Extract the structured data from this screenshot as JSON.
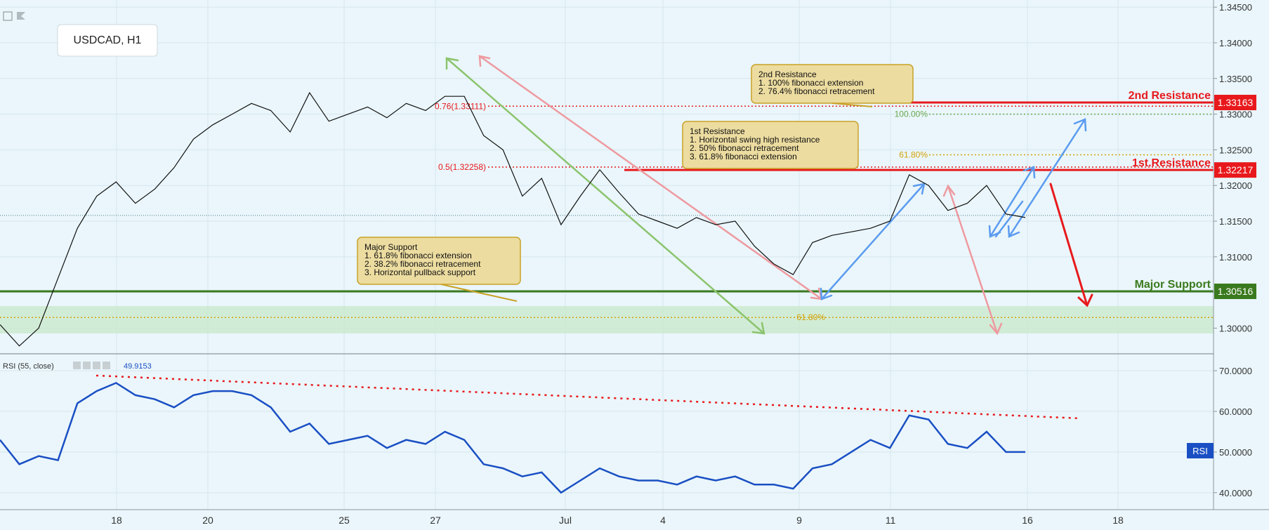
{
  "symbol_label": "USDCAD, H1",
  "colors": {
    "background": "#eaf6fb",
    "price_line": "#111111",
    "resistance": "#e8191c",
    "support": "#3a7a1e",
    "support_zone": "#c8e8c9",
    "fib_gold": "#d4a20a",
    "fib_green": "#6aa84f",
    "rsi_line": "#1a4fc4",
    "arrow_blue": "#5b9bef",
    "arrow_pink": "#ee9aa0",
    "arrow_green": "#8cc46e",
    "arrow_red": "#e8191c",
    "note_bg": "#ecdca0",
    "note_border": "#c9a227"
  },
  "chart_data": [
    {
      "type": "line",
      "series": [
        {
          "name": "USDCAD",
          "x": [
            "Jun 15",
            "Jun 15",
            "Jun 16",
            "Jun 16",
            "Jun 17",
            "Jun 17",
            "Jun 18",
            "Jun 18",
            "Jun 19",
            "Jun 19",
            "Jun 20",
            "Jun 20",
            "Jun 21",
            "Jun 22",
            "Jun 23",
            "Jun 24",
            "Jun 24",
            "Jun 25",
            "Jun 25",
            "Jun 26",
            "Jun 26",
            "Jun 27",
            "Jun 27",
            "Jun 28",
            "Jun 28",
            "Jun 29",
            "Jun 29",
            "Jun 30",
            "Jun 30",
            "Jul 1",
            "Jul 2",
            "Jul 2",
            "Jul 3",
            "Jul 3",
            "Jul 4",
            "Jul 4",
            "Jul 5",
            "Jul 6",
            "Jul 7",
            "Jul 8",
            "Jul 8",
            "Jul 9",
            "Jul 9",
            "Jul 10",
            "Jul 10",
            "Jul 11",
            "Jul 11",
            "Jul 12",
            "Jul 12",
            "Jul 13",
            "Jul 14",
            "Jul 15",
            "Jul 15",
            "Jul 16"
          ],
          "values": [
            1.3005,
            1.2975,
            1.3,
            1.307,
            1.314,
            1.3185,
            1.3205,
            1.3175,
            1.3195,
            1.3225,
            1.3265,
            1.3285,
            1.33,
            1.3315,
            1.3305,
            1.3275,
            1.333,
            1.329,
            1.33,
            1.331,
            1.3295,
            1.3315,
            1.3305,
            1.3325,
            1.3325,
            1.327,
            1.325,
            1.3185,
            1.321,
            1.3145,
            1.3185,
            1.3222,
            1.319,
            1.316,
            1.315,
            1.314,
            1.3155,
            1.3145,
            1.315,
            1.3115,
            1.309,
            1.3075,
            1.312,
            1.313,
            1.3135,
            1.314,
            1.315,
            1.3215,
            1.32,
            1.3165,
            1.3175,
            1.32,
            1.316,
            1.3155
          ]
        }
      ],
      "ylim": [
        1.2965,
        1.346
      ],
      "yticks": [
        "1.34500",
        "1.34000",
        "1.33500",
        "1.33000",
        "1.32500",
        "1.32000",
        "1.31500",
        "1.31000",
        "1.30500",
        "1.30000"
      ],
      "xticks": [
        "18",
        "20",
        "25",
        "27",
        "Jul",
        "4",
        "9",
        "11",
        "16",
        "18"
      ],
      "last_price": 1.3158,
      "levels": [
        {
          "name": "2nd Resistance",
          "value": 1.33163,
          "label": "1.33163"
        },
        {
          "name": "1st.Resistance",
          "value": 1.32217,
          "label": "1.32217"
        },
        {
          "name": "Major Support",
          "value": 1.30516,
          "label": "1.30516"
        }
      ],
      "fib_lines": [
        {
          "label": "0.5(1.32258)",
          "value": 1.32258
        },
        {
          "label": "0.76(1.33111)",
          "value": 1.33111
        },
        {
          "label": "100.00%",
          "value": 1.33
        },
        {
          "label": "61.80%",
          "value": 1.3243
        },
        {
          "label": "61.80%",
          "value": 1.3015
        }
      ],
      "annotations": [
        {
          "title": "2nd Resistance",
          "lines": [
            "1. 100% fibonacci extension",
            "2. 76.4% fibonacci retracement"
          ]
        },
        {
          "title": "1st Resistance",
          "lines": [
            "1. Horizontal swing high resistance",
            "2. 50% fibonacci retracement",
            "3. 61.8% fibonacci extension"
          ]
        },
        {
          "title": "Major Support",
          "lines": [
            "1. 61.8% fibonacci extension",
            "2. 38.2% fibonacci retracement",
            "3. Horizontal pullback support"
          ]
        }
      ],
      "grid": true
    },
    {
      "type": "line",
      "title": "RSI (55, close)",
      "current_value": "49.9153",
      "badge": "RSI",
      "series": [
        {
          "name": "RSI",
          "x": [
            "Jun 15",
            "Jun 15",
            "Jun 16",
            "Jun 16",
            "Jun 17",
            "Jun 17",
            "Jun 18",
            "Jun 18",
            "Jun 19",
            "Jun 19",
            "Jun 20",
            "Jun 20",
            "Jun 21",
            "Jun 22",
            "Jun 23",
            "Jun 24",
            "Jun 24",
            "Jun 25",
            "Jun 25",
            "Jun 26",
            "Jun 26",
            "Jun 27",
            "Jun 27",
            "Jun 28",
            "Jun 28",
            "Jun 29",
            "Jun 29",
            "Jun 30",
            "Jun 30",
            "Jul 1",
            "Jul 2",
            "Jul 2",
            "Jul 3",
            "Jul 3",
            "Jul 4",
            "Jul 4",
            "Jul 5",
            "Jul 6",
            "Jul 7",
            "Jul 8",
            "Jul 8",
            "Jul 9",
            "Jul 9",
            "Jul 10",
            "Jul 10",
            "Jul 11",
            "Jul 11",
            "Jul 12",
            "Jul 12",
            "Jul 13",
            "Jul 14",
            "Jul 15",
            "Jul 15",
            "Jul 16"
          ],
          "values": [
            53,
            47,
            49,
            48,
            62,
            65,
            67,
            64,
            63,
            61,
            64,
            65,
            65,
            64,
            61,
            55,
            57,
            52,
            53,
            54,
            51,
            53,
            52,
            55,
            53,
            47,
            46,
            44,
            45,
            40,
            43,
            46,
            44,
            43,
            43,
            42,
            44,
            43,
            44,
            42,
            42,
            41,
            46,
            47,
            50,
            53,
            51,
            59,
            58,
            52,
            51,
            55,
            50,
            50
          ]
        }
      ],
      "ylim": [
        36,
        74
      ],
      "yticks": [
        "70.0000",
        "60.0000",
        "50.0000",
        "40.0000"
      ],
      "grid": true
    }
  ]
}
